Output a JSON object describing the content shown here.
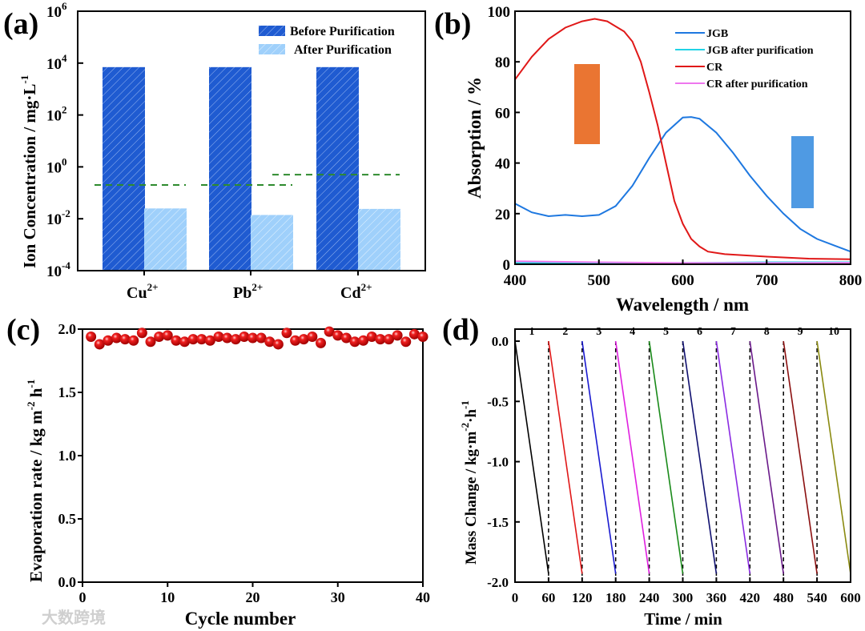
{
  "chart_data": [
    {
      "panel_label": "(a)",
      "type": "bar",
      "ylabel": "Ion Concentration / mg·L",
      "ylabel_sup": "-1",
      "yscale": "log",
      "ylim": [
        0.0001,
        1000000
      ],
      "ytick_base": "10",
      "ytick_exponents": [
        "-4",
        "-2",
        "0",
        "2",
        "4",
        "6"
      ],
      "categories": [
        {
          "base": "Cu",
          "sup": "2+"
        },
        {
          "base": "Pb",
          "sup": "2+"
        },
        {
          "base": "Cd",
          "sup": "2+"
        }
      ],
      "series": [
        {
          "name": "Before Purification",
          "color": "#1f5bd1",
          "values": [
            7000,
            7000,
            7000
          ]
        },
        {
          "name": "After  Purification",
          "color": "#9fd0fb",
          "values": [
            0.025,
            0.014,
            0.024
          ]
        }
      ],
      "limit_lines": {
        "color": "#2e8b2e",
        "style": "dashed",
        "values": [
          0.2,
          0.2,
          0.5
        ]
      },
      "legend": "top-right"
    },
    {
      "panel_label": "(b)",
      "type": "line",
      "xlabel": "Wavelength / nm",
      "ylabel": "Absorption / %",
      "xlim": [
        400,
        800
      ],
      "ylim": [
        0,
        100
      ],
      "xticks": [
        "400",
        "500",
        "600",
        "700",
        "800"
      ],
      "yticks": [
        "0",
        "20",
        "40",
        "60",
        "80",
        "100"
      ],
      "legend": "top-right",
      "series": [
        {
          "name": "JGB",
          "color": "#1e78e0",
          "x": [
            400,
            420,
            440,
            460,
            480,
            500,
            520,
            540,
            560,
            580,
            600,
            610,
            620,
            640,
            660,
            680,
            700,
            720,
            740,
            760,
            780,
            800
          ],
          "y": [
            24,
            20.5,
            19,
            19.5,
            19,
            19.5,
            23,
            31,
            42,
            52,
            58,
            58.2,
            57.5,
            52,
            44,
            35,
            27,
            20,
            14,
            10,
            7.5,
            5
          ]
        },
        {
          "name": "JGB after purification",
          "color": "#22d3e6",
          "x": [
            400,
            500,
            600,
            700,
            800
          ],
          "y": [
            0.5,
            0.4,
            0.5,
            0.8,
            0.8
          ]
        },
        {
          "name": " CR",
          "color": "#e01818",
          "x": [
            400,
            420,
            440,
            460,
            480,
            495,
            510,
            530,
            540,
            550,
            560,
            570,
            580,
            590,
            600,
            610,
            620,
            630,
            650,
            700,
            750,
            800
          ],
          "y": [
            73,
            82,
            89,
            93.5,
            96,
            97,
            96,
            92,
            88,
            80,
            68,
            55,
            40,
            25,
            16,
            10,
            7,
            5,
            4,
            3,
            2.2,
            2
          ]
        },
        {
          "name": " CR  after purification",
          "color": "#ee77ee",
          "x": [
            400,
            500,
            600,
            700,
            800
          ],
          "y": [
            1.2,
            0.8,
            0.5,
            0.5,
            0.6
          ]
        }
      ],
      "insets": [
        {
          "name": "CR cuvette",
          "color": "#e8661c"
        },
        {
          "name": "JGB cuvette",
          "color": "#3c8fe0"
        }
      ]
    },
    {
      "panel_label": "(c)",
      "type": "scatter",
      "xlabel": "Cycle number",
      "ylabel": "Evaporation rate / kg m",
      "ylabel_sup1": "-2",
      "ylabel_mid": " h",
      "ylabel_sup2": "-1",
      "xlim": [
        0,
        40
      ],
      "ylim": [
        0,
        2.0
      ],
      "xticks": [
        "0",
        "10",
        "20",
        "30",
        "40"
      ],
      "yticks": [
        "0.0",
        "0.5",
        "1.0",
        "1.5",
        "2.0"
      ],
      "color": "#e81010",
      "x": [
        1,
        2,
        3,
        4,
        5,
        6,
        7,
        8,
        9,
        10,
        11,
        12,
        13,
        14,
        15,
        16,
        17,
        18,
        19,
        20,
        21,
        22,
        23,
        24,
        25,
        26,
        27,
        28,
        29,
        30,
        31,
        32,
        33,
        34,
        35,
        36,
        37,
        38,
        39,
        40
      ],
      "y": [
        1.94,
        1.88,
        1.91,
        1.93,
        1.92,
        1.91,
        1.97,
        1.9,
        1.94,
        1.95,
        1.91,
        1.9,
        1.92,
        1.92,
        1.91,
        1.94,
        1.93,
        1.92,
        1.94,
        1.93,
        1.93,
        1.9,
        1.88,
        1.97,
        1.91,
        1.92,
        1.94,
        1.89,
        1.98,
        1.95,
        1.93,
        1.9,
        1.91,
        1.94,
        1.92,
        1.92,
        1.95,
        1.9,
        1.96,
        1.94
      ]
    },
    {
      "panel_label": "(d)",
      "type": "line",
      "xlabel": "Time / min",
      "ylabel": "Mass Change / kg·m",
      "ylabel_sup1": "-2",
      "ylabel_mid": "·h",
      "ylabel_sup2": "-1",
      "xlim": [
        0,
        600
      ],
      "ylim": [
        -2.0,
        0.1
      ],
      "xticks": [
        "0",
        "60",
        "120",
        "180",
        "240",
        "300",
        "360",
        "420",
        "480",
        "540",
        "600"
      ],
      "yticks": [
        "-2.0",
        "-1.5",
        "-1.0",
        "-0.5",
        "0.0"
      ],
      "cycle_labels": [
        "1",
        "2",
        "3",
        "4",
        "5",
        "6",
        "7",
        "8",
        "9",
        "10"
      ],
      "cycle_end_value": -1.93,
      "cycle_duration": 60,
      "colors": [
        "#000000",
        "#e01818",
        "#1a1ad0",
        "#e020e0",
        "#1a8a1a",
        "#101070",
        "#8a2be2",
        "#6a1a8a",
        "#8b1010",
        "#8a8a10"
      ],
      "dividers": [
        60,
        120,
        180,
        240,
        300,
        360,
        420,
        480,
        540
      ]
    }
  ],
  "watermark": "大数跨境"
}
